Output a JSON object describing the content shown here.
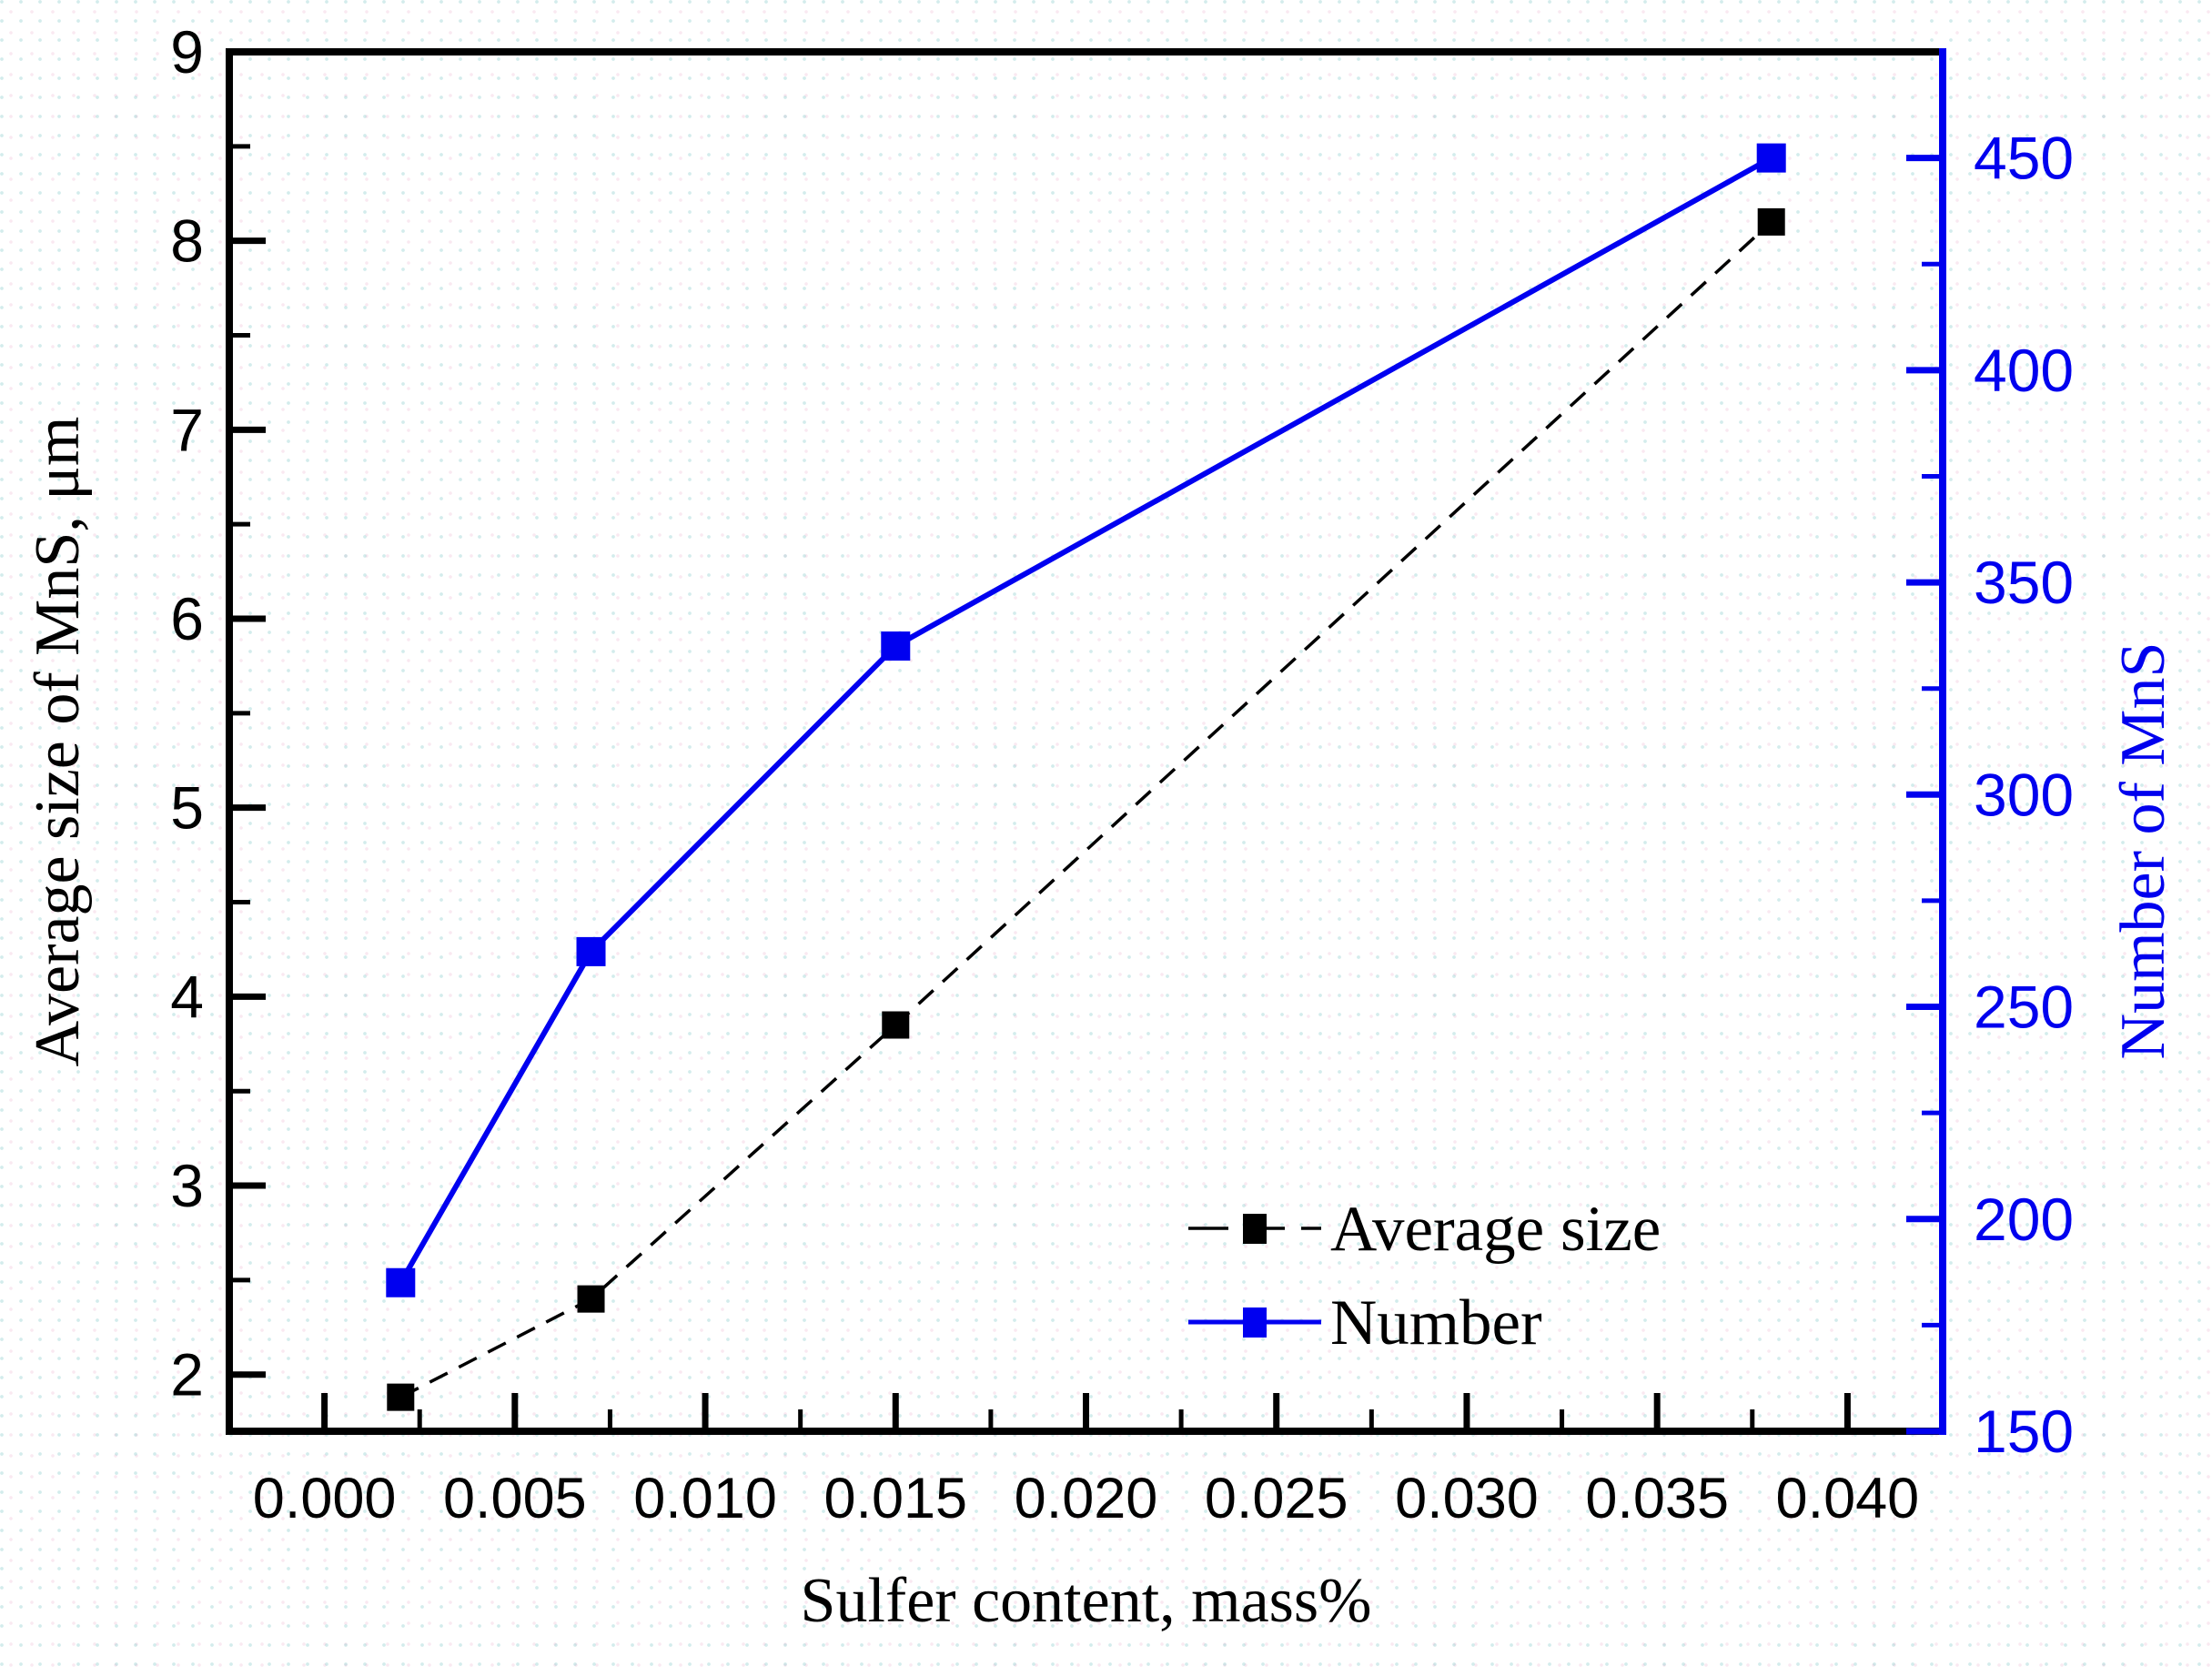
{
  "figure": {
    "kind": "dual-axis scientific line plot",
    "background": "#ffffff",
    "frame_color": "#000000",
    "right_axis_color": "#0000ee"
  },
  "chart_data": {
    "type": "line",
    "title": "",
    "xlabel": "Sulfer content, mass%",
    "ylabel_left": "Average size of MnS, μm",
    "ylabel_right": "Number of MnS",
    "x_axis": {
      "min": -0.0025,
      "max": 0.0425,
      "major_ticks": [
        0.0,
        0.005,
        0.01,
        0.015,
        0.02,
        0.025,
        0.03,
        0.035,
        0.04
      ],
      "major_tick_labels": [
        "0.000",
        "0.005",
        "0.010",
        "0.015",
        "0.020",
        "0.025",
        "0.030",
        "0.035",
        "0.040"
      ],
      "minor_ticks": [
        0.0025,
        0.0075,
        0.0125,
        0.0175,
        0.0225,
        0.0275,
        0.0325,
        0.0375
      ],
      "color": "#000000",
      "grid": false
    },
    "y_left_axis": {
      "min": 1.7,
      "max": 9.0,
      "major_ticks": [
        2,
        3,
        4,
        5,
        6,
        7,
        8,
        9
      ],
      "major_tick_labels": [
        "2",
        "3",
        "4",
        "5",
        "6",
        "7",
        "8",
        "9"
      ],
      "minor_ticks": [
        2.5,
        3.5,
        4.5,
        5.5,
        6.5,
        7.5,
        8.5
      ],
      "color": "#000000",
      "grid": false
    },
    "y_right_axis": {
      "min": 150,
      "max": 475,
      "major_ticks": [
        150,
        200,
        250,
        300,
        350,
        400,
        450
      ],
      "major_tick_labels": [
        "150",
        "200",
        "250",
        "300",
        "350",
        "400",
        "450"
      ],
      "minor_ticks": [
        175,
        225,
        275,
        325,
        375,
        425
      ],
      "color": "#0000ee",
      "grid": false
    },
    "series": [
      {
        "name": "Average size",
        "slug": "average-size",
        "axis": "left",
        "color": "#000000",
        "line_style": "dashed",
        "line_width": 3.5,
        "marker": "square",
        "marker_size": 30,
        "x": [
          0.002,
          0.007,
          0.015,
          0.038
        ],
        "y": [
          1.88,
          2.4,
          3.85,
          8.1
        ]
      },
      {
        "name": "Number",
        "slug": "number",
        "axis": "right",
        "color": "#0000f0",
        "line_style": "solid",
        "line_width": 6,
        "marker": "square",
        "marker_size": 32,
        "x": [
          0.002,
          0.007,
          0.015,
          0.038
        ],
        "y": [
          185,
          263,
          335,
          450
        ]
      }
    ],
    "legend": {
      "position": "inside-lower-right",
      "items": [
        "Average size",
        "Number"
      ]
    }
  }
}
